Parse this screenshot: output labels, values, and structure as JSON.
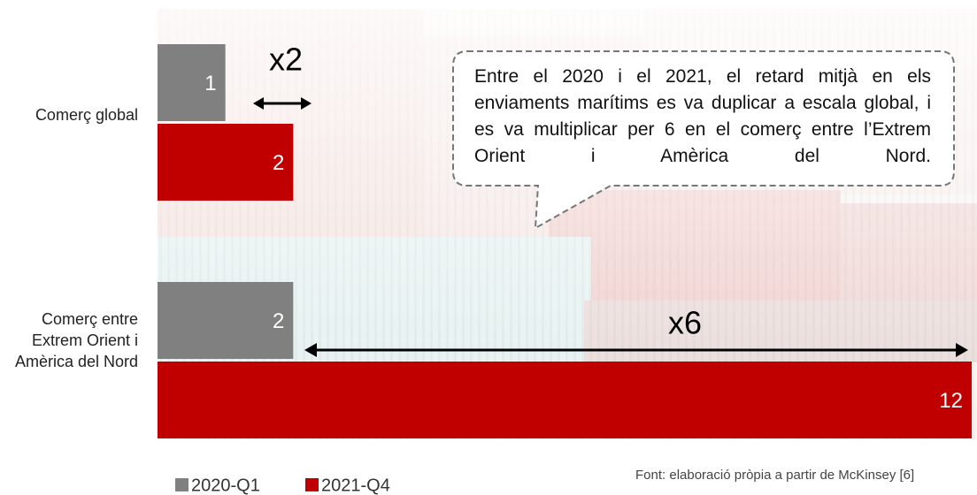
{
  "chart_data": {
    "type": "hbar",
    "categories": [
      "Comerç global",
      "Comerç entre Extrem Orient i Amèrica del Nord"
    ],
    "series": [
      {
        "name": "2020-Q1",
        "color": "#808080",
        "values": [
          1,
          2
        ]
      },
      {
        "name": "2021-Q4",
        "color": "#c00000",
        "values": [
          2,
          12
        ]
      }
    ],
    "xlim": [
      0,
      12
    ],
    "annotations": [
      "x2",
      "x6",
      "Entre el 2020 i el 2021, el retard mitjà en els enviaments marítims es va duplicar a escala global, i es va multiplicar per 6 en el comerç entre l’Extrem Orient i Amèrica del Nord."
    ],
    "source": "Font: elaboració pròpia a partir de McKinsey [6]"
  }
}
